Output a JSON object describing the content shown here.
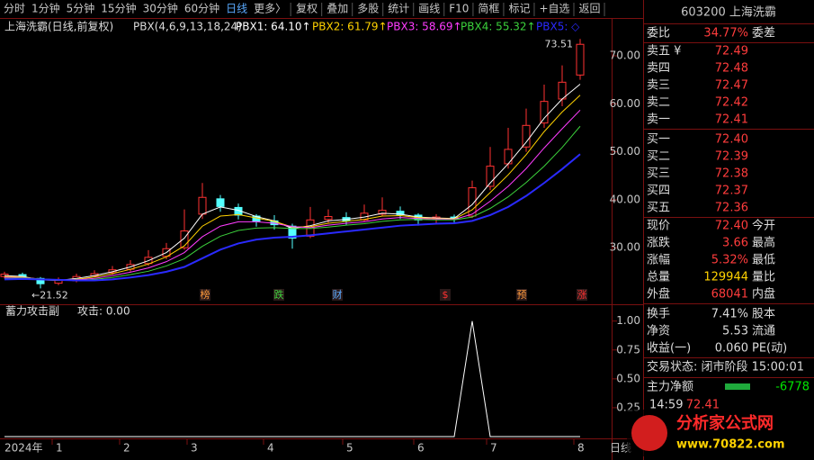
{
  "toolbar": {
    "periods": [
      "分时",
      "1分钟",
      "5分钟",
      "15分钟",
      "30分钟",
      "60分钟",
      "日线",
      "更多〉"
    ],
    "active": "日线",
    "tools": [
      "复权",
      "叠加",
      "多股",
      "统计",
      "画线",
      "F10",
      "简框",
      "标记",
      "+自选",
      "返回"
    ]
  },
  "quote_panel": {
    "title": "603200 上海洗霸",
    "rows": [
      {
        "label": "委比",
        "value": "34.77%",
        "label2": "委差",
        "color": "#ff3c3c"
      },
      {
        "label": "卖五 ¥",
        "value": "72.49",
        "color": "#ff3c3c"
      },
      {
        "label": "卖四",
        "value": "72.48",
        "color": "#ff3c3c"
      },
      {
        "label": "卖三",
        "value": "72.47",
        "color": "#ff3c3c"
      },
      {
        "label": "卖二",
        "value": "72.42",
        "color": "#ff3c3c"
      },
      {
        "label": "卖一",
        "value": "72.41",
        "color": "#ff3c3c"
      },
      {
        "label": "买一",
        "value": "72.40",
        "color": "#ff3c3c"
      },
      {
        "label": "买二",
        "value": "72.39",
        "color": "#ff3c3c"
      },
      {
        "label": "买三",
        "value": "72.38",
        "color": "#ff3c3c"
      },
      {
        "label": "买四",
        "value": "72.37",
        "color": "#ff3c3c"
      },
      {
        "label": "买五",
        "value": "72.36",
        "color": "#ff3c3c"
      },
      {
        "label": "现价",
        "value": "72.40",
        "label2": "今开",
        "color": "#ff3c3c"
      },
      {
        "label": "涨跌",
        "value": "3.66",
        "label2": "最高",
        "color": "#ff3c3c"
      },
      {
        "label": "涨幅",
        "value": "5.32%",
        "label2": "最低",
        "color": "#ff3c3c"
      },
      {
        "label": "总量",
        "value": "129944",
        "label2": "量比",
        "color": "#ffd200"
      },
      {
        "label": "外盘",
        "value": "68041",
        "label2": "内盘",
        "color": "#ff3c3c"
      },
      {
        "label": "换手",
        "value": "7.41%",
        "label2": "股本",
        "color": "#dcdcdc"
      },
      {
        "label": "净资",
        "value": "5.53",
        "label2": "流通",
        "color": "#dcdcdc"
      },
      {
        "label": "收益(一)",
        "value": "0.060",
        "label2": "PE(动)",
        "color": "#dcdcdc"
      }
    ],
    "status": "交易状态: 闭市阶段 15:00:01",
    "net_flow_label": "主力净额",
    "net_flow": "-6778",
    "tick_time": "14:59",
    "tick_price": "72.41"
  },
  "time_axis": [
    "2024年",
    "1",
    "2",
    "3",
    "4",
    "5",
    "6",
    "7",
    "8",
    "日线"
  ],
  "watermark": {
    "title": "分析家公式网",
    "url": "www.70822.com"
  },
  "chart_data": [
    {
      "type": "candlestick",
      "title": "上海洗霸(日线,前复权)",
      "indicator": "PBX(4,6,9,13,18,24)",
      "open": [
        24.0,
        24.4,
        23.6,
        22.6,
        23.1,
        24.1,
        24.8,
        25.5,
        26.7,
        28.2,
        30.0,
        37.0,
        40.2,
        38.4,
        36.6,
        35.6,
        34.5,
        32.4,
        35.9,
        36.3,
        35.8,
        37.0,
        37.6,
        36.8,
        35.9,
        36.4,
        36.6,
        42.8,
        47.5,
        51.0,
        56.0,
        61.0,
        66.0
      ],
      "high": [
        25.0,
        24.8,
        23.9,
        23.8,
        24.6,
        25.3,
        26.2,
        27.4,
        29.5,
        31.0,
        38.0,
        43.5,
        41.0,
        39.2,
        37.0,
        36.8,
        35.0,
        38.5,
        38.0,
        37.4,
        39.0,
        40.5,
        38.6,
        37.2,
        37.0,
        36.9,
        44.0,
        51.0,
        55.0,
        59.0,
        64.0,
        68.0,
        73.51
      ],
      "low": [
        23.6,
        23.3,
        21.52,
        22.2,
        22.8,
        23.8,
        24.4,
        25.0,
        26.2,
        27.6,
        29.6,
        36.0,
        37.5,
        35.9,
        34.4,
        33.8,
        29.8,
        32.0,
        35.2,
        34.8,
        35.5,
        36.6,
        36.0,
        34.6,
        35.2,
        35.3,
        36.2,
        42.0,
        46.5,
        50.0,
        55.0,
        59.5,
        65.0
      ],
      "close": [
        24.5,
        23.8,
        22.5,
        23.2,
        24.0,
        24.6,
        25.4,
        26.5,
        28.0,
        29.8,
        33.5,
        40.5,
        38.6,
        36.8,
        35.5,
        34.8,
        32.0,
        35.8,
        36.5,
        35.6,
        37.2,
        37.8,
        36.9,
        35.8,
        36.4,
        36.0,
        42.5,
        47.0,
        50.5,
        55.5,
        60.5,
        64.5,
        72.4
      ],
      "up_color": "#ff3232",
      "down_color": "#54ffff",
      "series": [
        {
          "name": "PBX1: 64.10↑",
          "color": "#ffffff",
          "values": [
            24.2,
            24.0,
            23.3,
            23.2,
            23.6,
            24.2,
            25.0,
            26.0,
            27.3,
            29.0,
            32.0,
            37.0,
            38.5,
            37.8,
            36.5,
            35.6,
            34.0,
            34.6,
            35.6,
            35.9,
            36.4,
            37.2,
            37.0,
            36.4,
            36.2,
            36.1,
            39.0,
            43.5,
            47.5,
            52.0,
            57.0,
            61.0,
            64.1
          ]
        },
        {
          "name": "PBX2: 61.79↑",
          "color": "#ffd200",
          "values": [
            24.0,
            23.9,
            23.4,
            23.2,
            23.4,
            23.9,
            24.6,
            25.5,
            26.6,
            28.1,
            30.4,
            34.5,
            36.6,
            36.9,
            36.2,
            35.5,
            34.3,
            34.4,
            35.1,
            35.5,
            35.9,
            36.6,
            36.7,
            36.3,
            36.1,
            36.0,
            37.9,
            41.5,
            45.2,
            49.4,
            54.2,
            58.3,
            61.79
          ]
        },
        {
          "name": "PBX3: 58.69↑",
          "color": "#ff3cff",
          "values": [
            23.8,
            23.8,
            23.5,
            23.3,
            23.3,
            23.6,
            24.2,
            24.9,
            25.8,
            27.1,
            29.0,
            32.3,
            34.5,
            35.4,
            35.4,
            35.1,
            34.4,
            34.2,
            34.7,
            35.1,
            35.4,
            36.0,
            36.3,
            36.1,
            36.0,
            35.9,
            37.0,
            39.7,
            42.8,
            46.5,
            50.8,
            54.8,
            58.69
          ]
        },
        {
          "name": "PBX4: 55.32↑",
          "color": "#3cd23c",
          "values": [
            23.6,
            23.7,
            23.5,
            23.3,
            23.2,
            23.4,
            23.8,
            24.4,
            25.1,
            26.2,
            27.7,
            30.3,
            32.4,
            33.6,
            34.1,
            34.2,
            34.0,
            34.0,
            34.3,
            34.7,
            35.0,
            35.5,
            35.8,
            35.9,
            35.8,
            35.8,
            36.4,
            38.2,
            40.6,
            43.6,
            47.0,
            50.9,
            55.32
          ]
        },
        {
          "name": "PBX5: ◇",
          "color": "#2a2aff",
          "values": [
            23.4,
            23.5,
            23.4,
            23.3,
            23.2,
            23.2,
            23.4,
            23.8,
            24.3,
            25.0,
            26.0,
            27.8,
            29.6,
            30.9,
            31.7,
            32.1,
            32.3,
            32.6,
            33.0,
            33.4,
            33.8,
            34.2,
            34.6,
            34.8,
            35.0,
            35.1,
            35.6,
            36.8,
            38.5,
            40.8,
            43.5,
            46.4,
            49.5
          ]
        }
      ],
      "ylim": [
        20,
        74
      ],
      "yticks": [
        {
          "value": 30,
          "label": "30.00"
        },
        {
          "value": 40,
          "label": "40.00"
        },
        {
          "value": 50,
          "label": "50.00"
        },
        {
          "value": 60,
          "label": "60.00"
        },
        {
          "value": 70,
          "label": "70.00"
        }
      ],
      "annotations": [
        {
          "text": "73.51",
          "index": 32,
          "value": 73.51
        },
        {
          "text": "←21.52",
          "index": 2,
          "value": 21.52
        }
      ],
      "event_marks": [
        {
          "text": "榜",
          "color": "#ff9a3c"
        },
        {
          "text": "跌",
          "color": "#3cd23c"
        },
        {
          "text": "财",
          "color": "#5aaaff"
        },
        {
          "text": "$",
          "color": "#ff3232"
        },
        {
          "text": "预",
          "color": "#ff9a3c"
        },
        {
          "text": "涨",
          "color": "#ff3232"
        }
      ]
    },
    {
      "type": "line",
      "title": "蓄力攻击副",
      "series": [
        {
          "name": "攻击: 0.00",
          "color": "#ffffff",
          "values": [
            0,
            0,
            0,
            0,
            0,
            0,
            0,
            0,
            0,
            0,
            0,
            0,
            0,
            0,
            0,
            0,
            0,
            0,
            0,
            0,
            0,
            0,
            0,
            0,
            0,
            0,
            1,
            0,
            0,
            0,
            0,
            0,
            0
          ]
        }
      ],
      "ylim": [
        0,
        1.13
      ],
      "yticks": [
        0.25,
        {
          "value": 0.5,
          "label": "0.50"
        },
        0.75,
        {
          "value": 1,
          "label": "1.00"
        }
      ]
    }
  ]
}
